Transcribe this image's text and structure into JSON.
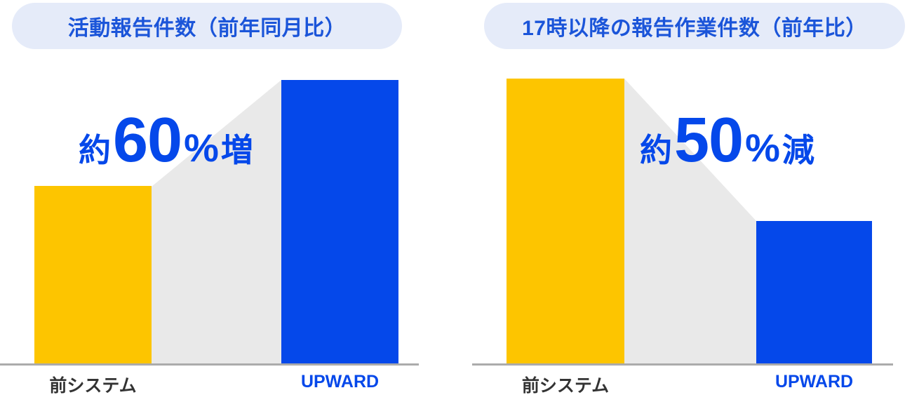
{
  "colors": {
    "bar_yellow": "#fdc500",
    "bar_blue": "#0548ea",
    "title_blue": "#1b55d9",
    "pill_background": "#e5ebf9",
    "connector_gray": "#e9e9e9",
    "baseline_gray": "#ababab",
    "label_dark": "#333333"
  },
  "chart_data": [
    {
      "type": "bar",
      "title": "活動報告件数（前年同月比）",
      "categories": [
        "前システム",
        "UPWARD"
      ],
      "values": [
        100,
        160
      ],
      "annotation": "約60%増",
      "annotation_parts": {
        "prefix": "約",
        "value": "60",
        "unit": "%",
        "suffix": "増"
      },
      "bar_colors": [
        "#fdc500",
        "#0548ea"
      ],
      "legend_position": "none",
      "grid": false
    },
    {
      "type": "bar",
      "title": "17時以降の報告作業件数（前年比）",
      "categories": [
        "前システム",
        "UPWARD"
      ],
      "values": [
        100,
        50
      ],
      "annotation": "約50%減",
      "annotation_parts": {
        "prefix": "約",
        "value": "50",
        "unit": "%",
        "suffix": "減"
      },
      "bar_colors": [
        "#fdc500",
        "#0548ea"
      ],
      "legend_position": "none",
      "grid": false
    }
  ]
}
